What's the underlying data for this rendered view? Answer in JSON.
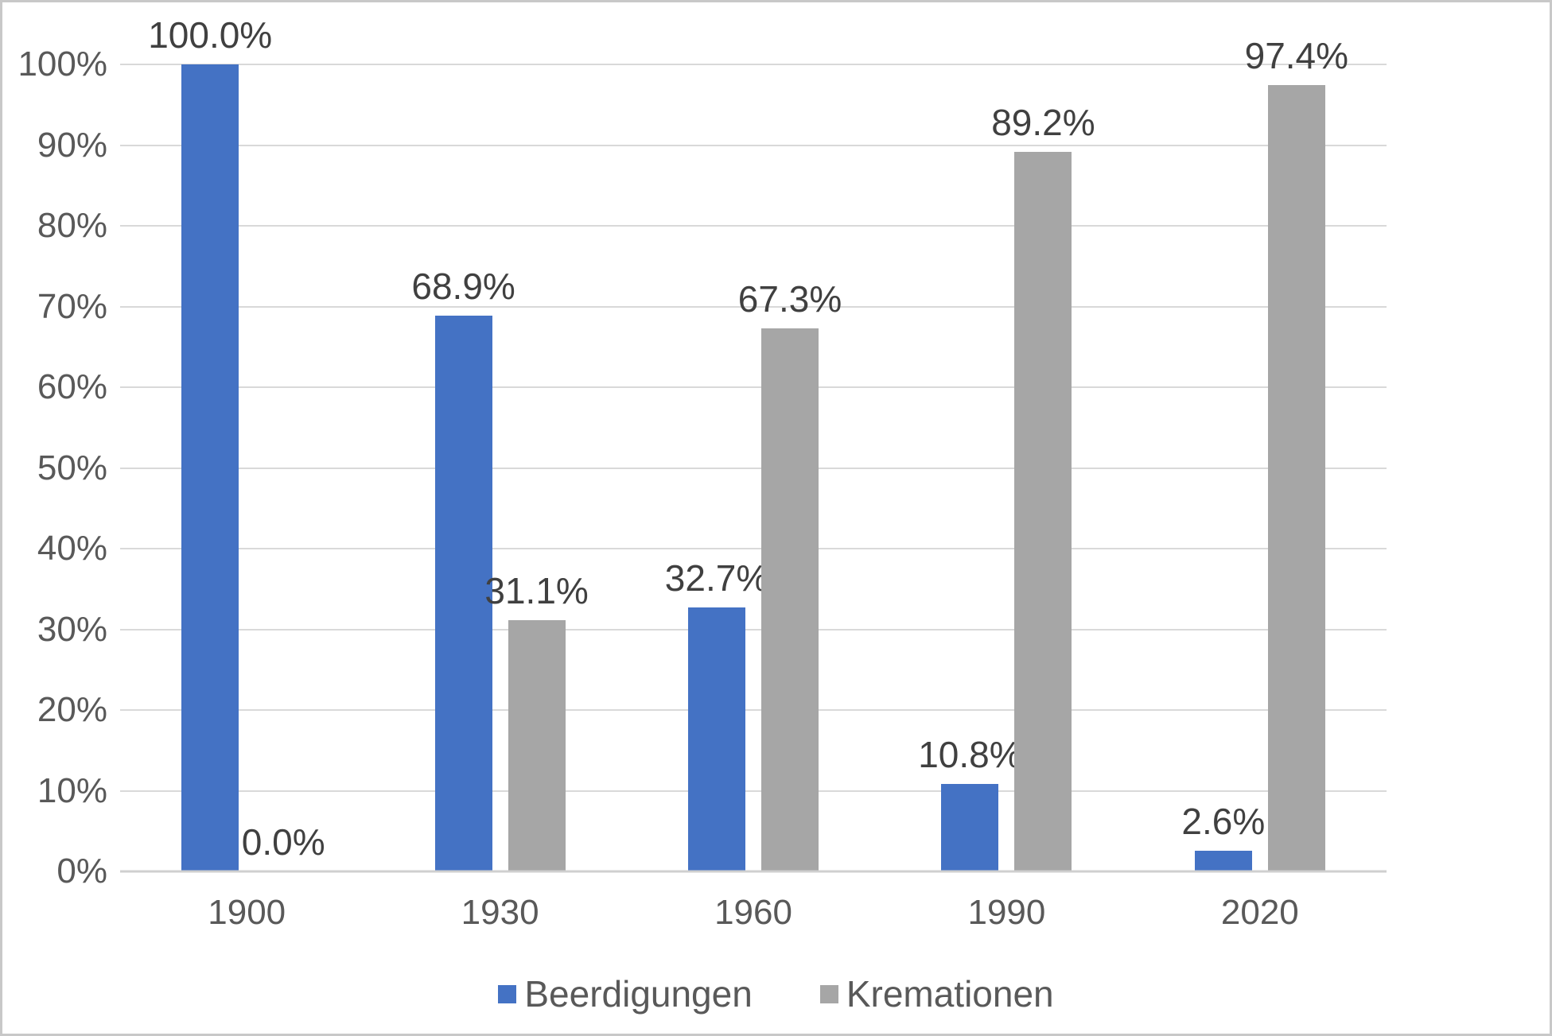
{
  "chart_data": {
    "type": "bar",
    "title": "",
    "categories": [
      "1900",
      "1930",
      "1960",
      "1990",
      "2020"
    ],
    "series": [
      {
        "name": "Beerdigungen",
        "color": "#4472C4",
        "values": [
          100.0,
          68.9,
          32.7,
          10.8,
          2.6
        ],
        "labels": [
          "100.0%",
          "68.9%",
          "32.7%",
          "10.8%",
          "2.6%"
        ]
      },
      {
        "name": "Kremationen",
        "color": "#A6A6A6",
        "values": [
          0.0,
          31.1,
          67.3,
          89.2,
          97.4
        ],
        "labels": [
          "0.0%",
          "31.1%",
          "67.3%",
          "89.2%",
          "97.4%"
        ]
      }
    ],
    "xlabel": "",
    "ylabel": "",
    "ylim": [
      0,
      100
    ],
    "ytick_step": 10,
    "ytick_suffix": "%",
    "grid": true,
    "legend_position": "bottom"
  },
  "colors": {
    "background": "#FFFFFF",
    "border": "#C8C8C8",
    "gridline": "#D9D9D9",
    "baseline": "#CFCFCF",
    "axis_text": "#595959",
    "data_label": "#404040"
  }
}
